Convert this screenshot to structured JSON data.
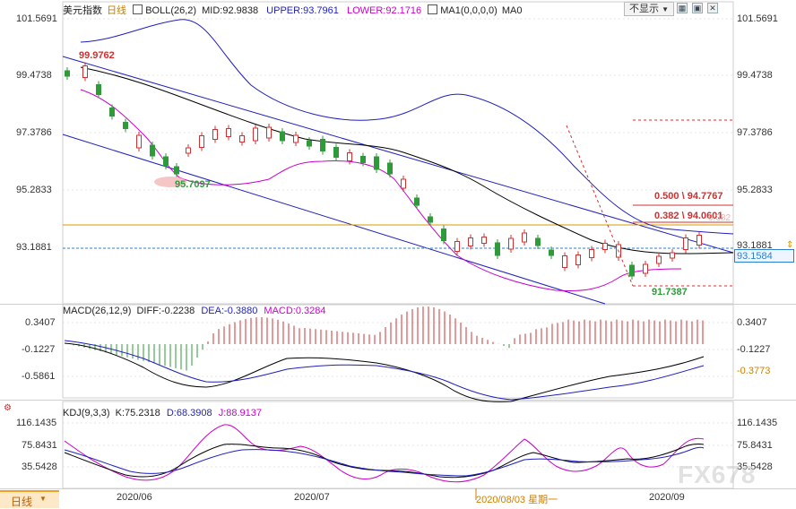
{
  "header": {
    "title": "美元指数",
    "period_link": "日线",
    "boll": {
      "label": "BOLL(26,2)",
      "mid": "MID:92.9838",
      "upper": "UPPER:93.7961",
      "lower": "LOWER:92.1716"
    },
    "ma": {
      "label": "MA1(0,0,0,0)",
      "value": "MA0"
    },
    "hide_button": "不显示"
  },
  "main_axis_left": [
    "101.5691",
    "99.4738",
    "97.3786",
    "95.2833",
    "93.1881"
  ],
  "main_axis_right": [
    "101.5691",
    "99.4738",
    "97.3786",
    "95.2833",
    "93.1881"
  ],
  "current_price": "93.1584",
  "annotations": {
    "high": "99.9762",
    "low_left": "95.7097",
    "low_right": "91.7387",
    "fib_500": "0.500 \\ 94.7767",
    "fib_382": "0.382 \\ 94.0601",
    "fib_382_ghost": "0.382"
  },
  "macd": {
    "label": "MACD(26,12,9)",
    "diff": "DIFF:-0.2238",
    "dea": "DEA:-0.3880",
    "macd": "MACD:0.3284",
    "axis": [
      "0.3407",
      "-0.1227",
      "-0.5861"
    ],
    "axis_right": [
      "0.3407",
      "-0.1227"
    ],
    "right_value": "-0.3773"
  },
  "kdj": {
    "label": "KDJ(9,3,3)",
    "k": "K:75.2318",
    "d": "D:68.3908",
    "j": "J:88.9137",
    "axis": [
      "116.1435",
      "75.8431",
      "35.5428"
    ],
    "axis_right": [
      "116.1435",
      "75.8431",
      "35.5428"
    ]
  },
  "footer": {
    "period_tab": "日线",
    "dates": [
      "2020/06",
      "2020/07",
      "2020/09"
    ],
    "cursor_date": "2020/08/03 星期一"
  },
  "watermark": "FX678",
  "colors": {
    "up": "#d03030",
    "down": "#2e9a3a",
    "mid": "#000000",
    "upper": "#1f1fbf",
    "lower": "#cc00cc",
    "channel": "#1f1fbf",
    "horizontal": "#d49c00"
  },
  "chart_data": {
    "type": "candlestick",
    "ylim": [
      91.3,
      101.8
    ],
    "main_series": [
      {
        "name": "MID",
        "value": 92.9838
      },
      {
        "name": "UPPER",
        "value": 93.7961
      },
      {
        "name": "LOWER",
        "value": 92.1716
      }
    ],
    "macd_series": [
      {
        "name": "DIFF",
        "value": -0.2238
      },
      {
        "name": "DEA",
        "value": -0.388
      },
      {
        "name": "MACD",
        "value": 0.3284
      }
    ],
    "kdj_series": [
      {
        "name": "K",
        "value": 75.2318
      },
      {
        "name": "D",
        "value": 68.3908
      },
      {
        "name": "J",
        "value": 88.9137
      }
    ]
  }
}
